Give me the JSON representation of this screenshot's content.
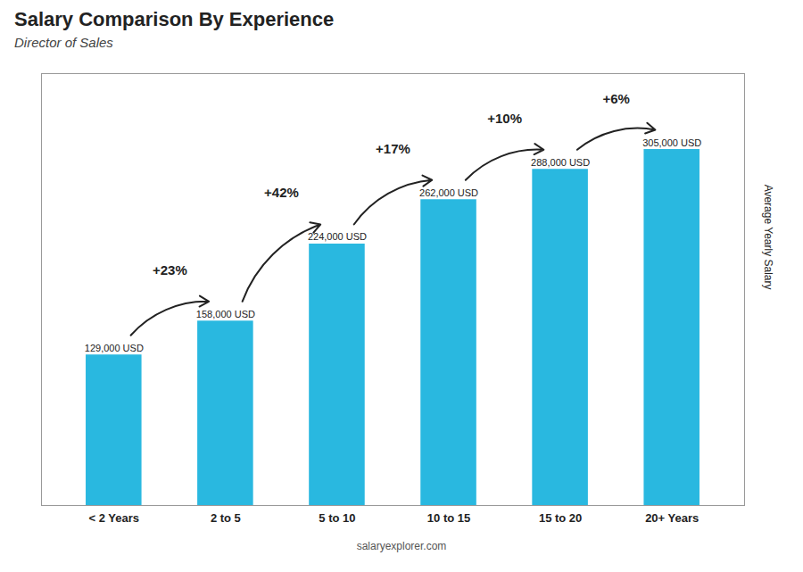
{
  "chart_data": {
    "type": "bar",
    "title": "Salary Comparison By Experience",
    "subtitle": "Director of Sales",
    "ylabel": "Average Yearly Salary",
    "caption": "salaryexplorer.com",
    "categories": [
      "< 2 Years",
      "2 to 5",
      "5 to 10",
      "10 to 15",
      "15 to 20",
      "20+ Years"
    ],
    "values": [
      129000,
      158000,
      224000,
      262000,
      288000,
      305000
    ],
    "value_labels": [
      "129,000 USD",
      "158,000 USD",
      "224,000 USD",
      "262,000 USD",
      "288,000 USD",
      "305,000 USD"
    ],
    "data_labels": true,
    "annotations": [
      "+23%",
      "+42%",
      "+17%",
      "+10%",
      "+6%"
    ],
    "color": "#29b8e0",
    "ylim": [
      0,
      370000
    ],
    "tick_labels": "x",
    "grid": false
  }
}
